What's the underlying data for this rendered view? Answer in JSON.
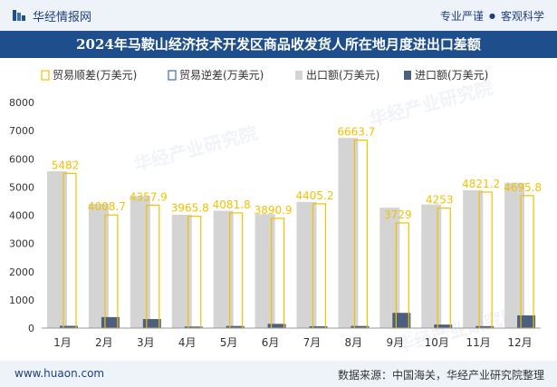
{
  "header": {
    "brand": "华经情报网",
    "tag1": "专业严谨",
    "separator": "●",
    "tag2": "客观科学"
  },
  "watermark": "华经产业研究院",
  "footer": {
    "url": "www.huaon.com",
    "source_label": "数据来源：",
    "source_value": "中国海关，华经产业研究院整理"
  },
  "colors": {
    "brand_blue": "#1f4e8c",
    "surplus": "#f2c100",
    "deficit": "#3a6fb0",
    "export": "#d4d4d4",
    "import": "#4d5f80"
  },
  "chart_data": {
    "type": "bar",
    "title": "2024年马鞍山经济技术开发区商品收发货人所在地月度进出口差额",
    "categories": [
      "1月",
      "2月",
      "3月",
      "4月",
      "5月",
      "6月",
      "7月",
      "8月",
      "9月",
      "10月",
      "11月",
      "12月"
    ],
    "series": [
      {
        "name": "贸易顺差(万美元)",
        "style": "outline",
        "values": [
          5482,
          4008.7,
          4357.9,
          3965.8,
          4081.8,
          3890.9,
          4405.2,
          6663.7,
          3729,
          4253,
          4821.2,
          4695.8
        ]
      },
      {
        "name": "贸易逆差(万美元)",
        "style": "outline",
        "values": [
          0,
          0,
          0,
          0,
          0,
          0,
          0,
          0,
          0,
          0,
          0,
          0
        ]
      },
      {
        "name": "出口额(万美元)",
        "values": [
          5560,
          4400,
          4680,
          4020,
          4160,
          4040,
          4470,
          6740,
          4270,
          4380,
          4890,
          5150
        ]
      },
      {
        "name": "进口额(万美元)",
        "values": [
          80,
          390,
          320,
          55,
          75,
          150,
          65,
          75,
          540,
          125,
          70,
          450
        ]
      }
    ],
    "ylim": [
      0,
      8000
    ],
    "yticks": [
      0,
      1000,
      2000,
      3000,
      4000,
      5000,
      6000,
      7000,
      8000
    ],
    "data_labels": [
      "5482",
      "4008.7",
      "4357.9",
      "3965.8",
      "4081.8",
      "3890.9",
      "4405.2",
      "6663.7",
      "3729",
      "4253",
      "4821.2",
      "4695.8"
    ],
    "grid": false,
    "legend": "top"
  }
}
